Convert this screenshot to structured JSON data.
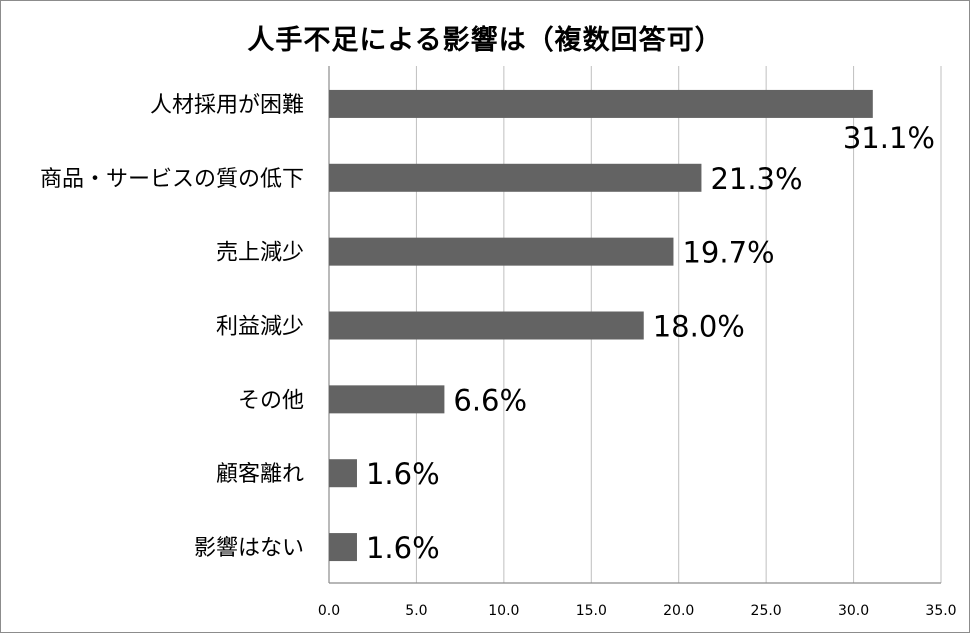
{
  "chart_data": {
    "type": "bar",
    "orientation": "horizontal",
    "title": "人手不足による影響は（複数回答可）",
    "categories": [
      "人材採用が困難",
      "商品・サービスの質の低下",
      "売上減少",
      "利益減少",
      "その他",
      "顧客離れ",
      "影響はない"
    ],
    "values": [
      31.1,
      21.3,
      19.7,
      18.0,
      6.6,
      1.6,
      1.6
    ],
    "value_labels": [
      "31.1%",
      "21.3%",
      "19.7%",
      "18.0%",
      "6.6%",
      "1.6%",
      "1.6%"
    ],
    "xlim": [
      0,
      35
    ],
    "x_ticks": [
      "0.0",
      "5.0",
      "10.0",
      "15.0",
      "20.0",
      "25.0",
      "30.0",
      "35.0"
    ],
    "x_tick_values": [
      0,
      5,
      10,
      15,
      20,
      25,
      30,
      35
    ],
    "grid": true,
    "colors": {
      "bar": "#636363",
      "grid": "#bfbfbf",
      "axis": "#8c8c8c",
      "text": "#000000"
    }
  }
}
